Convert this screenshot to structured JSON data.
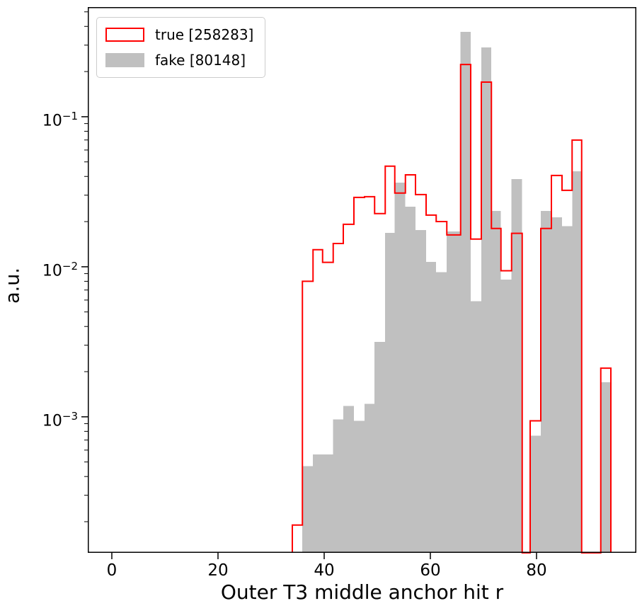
{
  "chart_data": {
    "type": "bar",
    "subtype": "step-histogram-log-y",
    "title": "",
    "xlabel": "Outer T3 middle anchor hit r",
    "ylabel": "a.u.",
    "xlim": [
      -4.53,
      98.8
    ],
    "ylim": [
      0.000124,
      0.538
    ],
    "yscale": "log",
    "grid": false,
    "legend_position": "upper left",
    "x_ticks": [
      0,
      20,
      40,
      60,
      80
    ],
    "y_tick_exponents": [
      -1,
      -2,
      -3
    ],
    "bin_edges": [
      34.0,
      35.9,
      37.9,
      39.7,
      41.7,
      43.6,
      45.6,
      47.6,
      49.5,
      51.5,
      53.3,
      55.3,
      57.2,
      59.2,
      61.1,
      63.1,
      65.7,
      67.6,
      69.6,
      71.5,
      73.3,
      75.3,
      77.3,
      78.8,
      80.8,
      82.8,
      84.8,
      86.7,
      88.5,
      90.1,
      92.1,
      94.0
    ],
    "series": [
      {
        "name": "true [258283]",
        "style": "step-outline",
        "color": "#ff0000",
        "values": [
          0.00019,
          0.008,
          0.013,
          0.0107,
          0.0143,
          0.0192,
          0.029,
          0.0293,
          0.0226,
          0.0468,
          0.031,
          0.041,
          0.0303,
          0.0221,
          0.02,
          0.0163,
          0.223,
          0.0153,
          0.17,
          0.018,
          0.0094,
          0.0167,
          0,
          0.00094,
          0.018,
          0.0406,
          0.0323,
          0.0699,
          0,
          0,
          0.00211
        ]
      },
      {
        "name": "fake [80148]",
        "style": "filled",
        "color": "#c0c0c0",
        "values": [
          0,
          0.00047,
          0.00056,
          0.00056,
          0.00096,
          0.00118,
          0.00094,
          0.00122,
          0.00316,
          0.0168,
          0.0364,
          0.0252,
          0.0176,
          0.0108,
          0.0092,
          0.0172,
          0.368,
          0.0059,
          0.29,
          0.0236,
          0.0082,
          0.0385,
          0,
          0.00075,
          0.0236,
          0.0214,
          0.0186,
          0.0433,
          0,
          0,
          0.0017
        ]
      }
    ]
  },
  "legend": {
    "items": [
      {
        "label": "true [258283]",
        "swatch": "outline",
        "color": "#ff0000"
      },
      {
        "label": "fake [80148]",
        "swatch": "fill",
        "color": "#c0c0c0"
      }
    ]
  },
  "colors": {
    "true_line": "#ff0000",
    "fake_fill": "#c0c0c0",
    "axis": "#000000",
    "legend_border": "#cccccc"
  }
}
